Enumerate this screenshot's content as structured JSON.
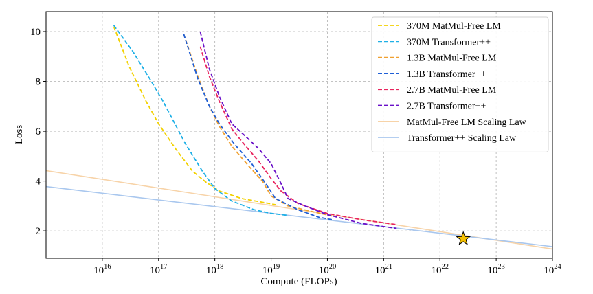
{
  "chart_data": {
    "type": "line",
    "xlabel": "Compute (FLOPs)",
    "ylabel": "Loss",
    "x_scale": "log",
    "xlim": [
      1000000000000000.0,
      1e+24
    ],
    "ylim": [
      0.9,
      10.8
    ],
    "x_ticks": [
      {
        "value": 1e+16,
        "base": "10",
        "exp": "16"
      },
      {
        "value": 1e+17,
        "base": "10",
        "exp": "17"
      },
      {
        "value": 1e+18,
        "base": "10",
        "exp": "18"
      },
      {
        "value": 1e+19,
        "base": "10",
        "exp": "19"
      },
      {
        "value": 1e+20,
        "base": "10",
        "exp": "20"
      },
      {
        "value": 1e+21,
        "base": "10",
        "exp": "21"
      },
      {
        "value": 1e+22,
        "base": "10",
        "exp": "22"
      },
      {
        "value": 1e+23,
        "base": "10",
        "exp": "23"
      },
      {
        "value": 1e+24,
        "base": "10",
        "exp": "24"
      }
    ],
    "y_ticks": [
      {
        "value": 2,
        "label": "2"
      },
      {
        "value": 4,
        "label": "4"
      },
      {
        "value": 6,
        "label": "6"
      },
      {
        "value": 8,
        "label": "8"
      },
      {
        "value": 10,
        "label": "10"
      }
    ],
    "grid": true,
    "legend_position": "top-right",
    "series": [
      {
        "name": "370M MatMul-Free LM",
        "color": "#f2d100",
        "style": "dashed",
        "points": [
          [
            1.6e+16,
            10.2
          ],
          [
            3e+16,
            8.6
          ],
          [
            6e+16,
            7.2
          ],
          [
            1e+17,
            6.3
          ],
          [
            2e+17,
            5.3
          ],
          [
            4e+17,
            4.4
          ],
          [
            7e+17,
            3.95
          ],
          [
            1.2e+18,
            3.6
          ],
          [
            3e+18,
            3.3
          ],
          [
            7e+18,
            3.15
          ],
          [
            1.2e+19,
            3.05
          ]
        ]
      },
      {
        "name": "370M Transformer++",
        "color": "#1fb0e6",
        "style": "dashed",
        "points": [
          [
            1.6e+16,
            10.25
          ],
          [
            3.5e+16,
            9.2
          ],
          [
            7e+16,
            8.1
          ],
          [
            1.2e+17,
            7.2
          ],
          [
            3e+17,
            5.5
          ],
          [
            6e+17,
            4.4
          ],
          [
            1e+18,
            3.7
          ],
          [
            2e+18,
            3.2
          ],
          [
            5e+18,
            2.85
          ],
          [
            1e+19,
            2.7
          ],
          [
            2e+19,
            2.62
          ]
        ]
      },
      {
        "name": "1.3B MatMul-Free LM",
        "color": "#f0a030",
        "style": "dashed",
        "points": [
          [
            2.8e+17,
            9.9
          ],
          [
            5e+17,
            8.2
          ],
          [
            8e+17,
            7.0
          ],
          [
            1.2e+18,
            6.2
          ],
          [
            2e+18,
            5.4
          ],
          [
            4e+18,
            4.6
          ],
          [
            7e+18,
            4.0
          ],
          [
            1e+19,
            3.4
          ],
          [
            2e+19,
            3.0
          ],
          [
            6e+19,
            2.75
          ],
          [
            1.2e+20,
            2.6
          ]
        ]
      },
      {
        "name": "1.3B Transformer++",
        "color": "#1f5fd6",
        "style": "dashed",
        "points": [
          [
            2.8e+17,
            9.9
          ],
          [
            5e+17,
            8.1
          ],
          [
            8e+17,
            7.0
          ],
          [
            1.2e+18,
            6.3
          ],
          [
            2.2e+18,
            5.5
          ],
          [
            4.5e+18,
            4.7
          ],
          [
            8e+18,
            3.9
          ],
          [
            1.2e+19,
            3.3
          ],
          [
            3e+19,
            2.85
          ],
          [
            7e+19,
            2.55
          ],
          [
            1.2e+20,
            2.45
          ]
        ]
      },
      {
        "name": "2.7B MatMul-Free LM",
        "color": "#e8245e",
        "style": "dashed",
        "points": [
          [
            5.5e+17,
            9.4
          ],
          [
            8e+17,
            8.2
          ],
          [
            1.2e+18,
            7.2
          ],
          [
            2e+18,
            6.1
          ],
          [
            3e+18,
            5.6
          ],
          [
            6e+18,
            4.8
          ],
          [
            1e+19,
            4.1
          ],
          [
            1.5e+19,
            3.6
          ],
          [
            3e+19,
            3.1
          ],
          [
            1e+20,
            2.7
          ],
          [
            4e+20,
            2.45
          ],
          [
            1.7e+21,
            2.25
          ]
        ]
      },
      {
        "name": "2.7B Transformer++",
        "color": "#6a10c8",
        "style": "dashed",
        "points": [
          [
            5.5e+17,
            10.0
          ],
          [
            8e+17,
            8.5
          ],
          [
            1.2e+18,
            7.4
          ],
          [
            2e+18,
            6.3
          ],
          [
            3.5e+18,
            5.8
          ],
          [
            6e+18,
            5.3
          ],
          [
            1e+19,
            4.7
          ],
          [
            1.5e+19,
            3.9
          ],
          [
            2e+19,
            3.3
          ],
          [
            4e+19,
            3.0
          ],
          [
            1e+20,
            2.65
          ],
          [
            4e+20,
            2.3
          ],
          [
            1.7e+21,
            2.1
          ]
        ]
      },
      {
        "name": "MatMul-Free LM Scaling Law",
        "color": "#f7d3a8",
        "style": "solid",
        "points": [
          [
            1000000000000000.0,
            4.42
          ],
          [
            1e+24,
            1.27
          ]
        ]
      },
      {
        "name": "Transformer++ Scaling Law",
        "color": "#a9c7ee",
        "style": "solid",
        "points": [
          [
            1000000000000000.0,
            3.78
          ],
          [
            1e+24,
            1.37
          ]
        ]
      }
    ],
    "marker": {
      "x": 2.6e+22,
      "y": 1.68,
      "shape": "star",
      "fill": "#f5c000",
      "stroke": "#000000"
    }
  }
}
